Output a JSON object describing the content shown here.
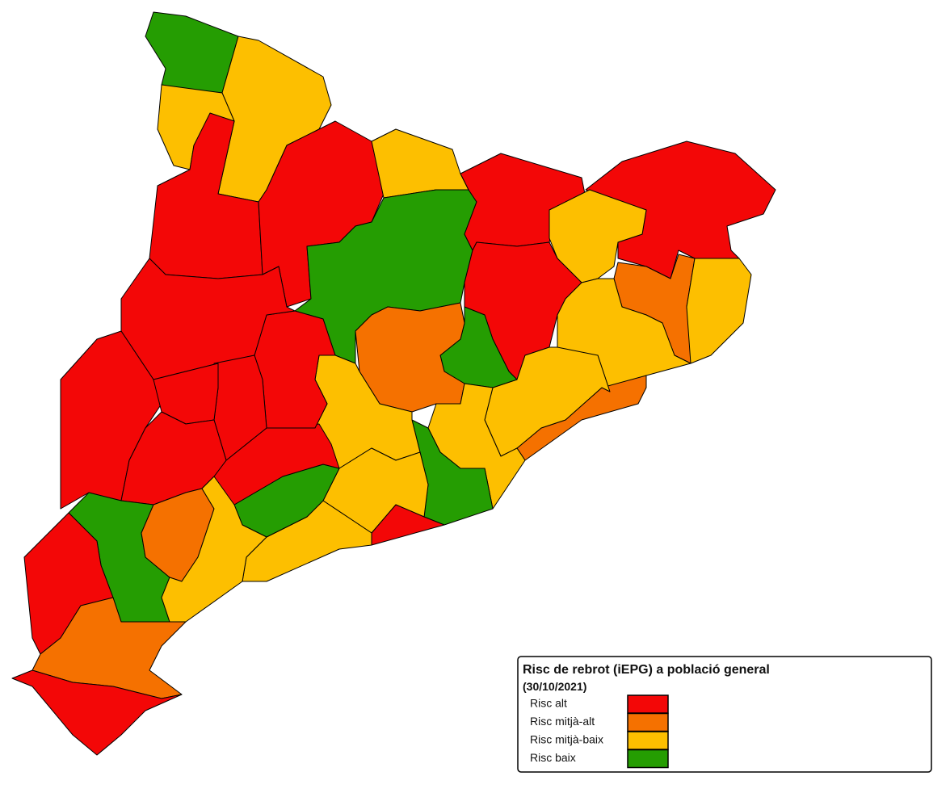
{
  "legend": {
    "title": "Risc de rebrot (iEPG) a població general",
    "subtitle": "(30/10/2021)",
    "items": [
      {
        "label": "Risc alt",
        "color": "#f30707"
      },
      {
        "label": "Risc mitjà-alt",
        "color": "#f57100"
      },
      {
        "label": "Risc mitjà-baix",
        "color": "#fdbf00"
      },
      {
        "label": "Risc baix",
        "color": "#259d02"
      }
    ]
  }
}
